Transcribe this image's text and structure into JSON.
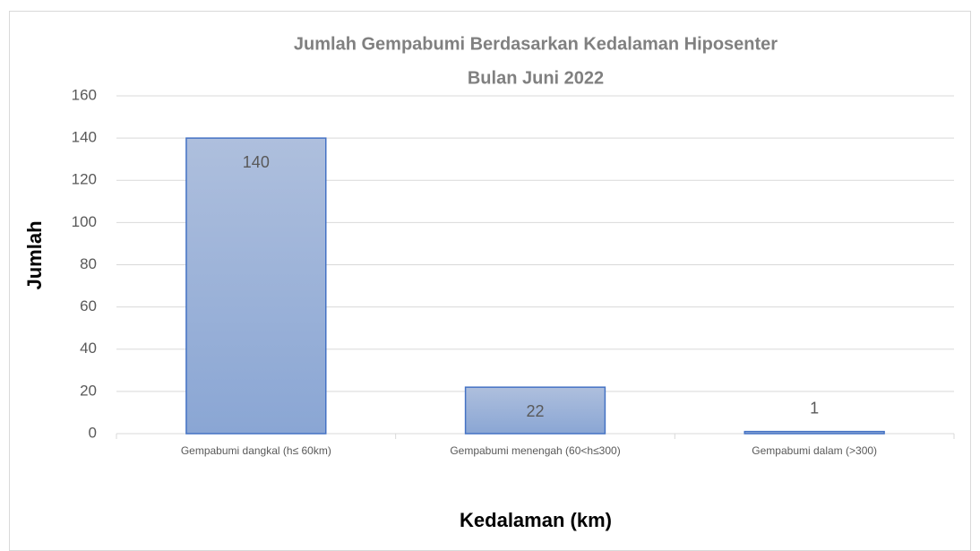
{
  "chart_data": {
    "type": "bar",
    "title": "Jumlah Gempabumi Berdasarkan Kedalaman Hiposenter",
    "subtitle": "Bulan Juni 2022",
    "x_label": "Kedalaman (km)",
    "y_label": "Jumlah",
    "categories": [
      "Gempabumi dangkal (h≤ 60km)",
      "Gempabumi menengah (60<h≤300)",
      "Gempabumi dalam (>300)"
    ],
    "values": [
      140,
      22,
      1
    ],
    "color": "#4472c4",
    "ylim": [
      0,
      160
    ],
    "yticks": [
      0,
      20,
      40,
      60,
      80,
      100,
      120,
      140,
      160
    ],
    "grid": true
  }
}
